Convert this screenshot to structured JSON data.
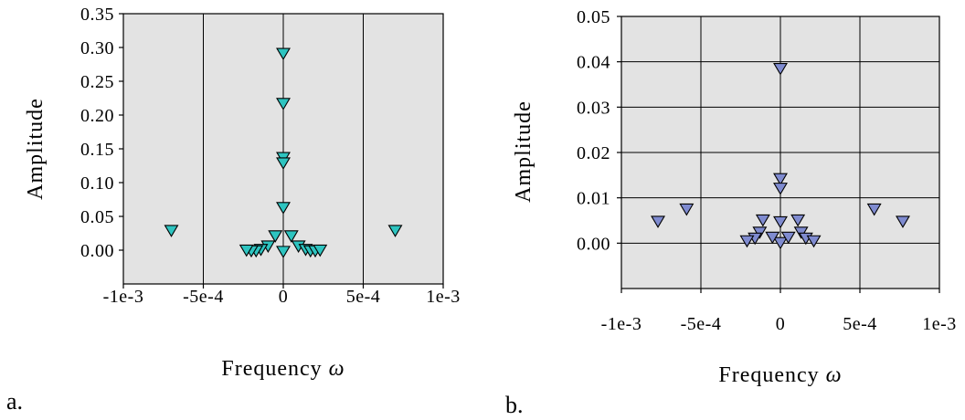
{
  "chart_data": [
    {
      "type": "scatter",
      "panel_label": "a.",
      "xlabel": "Frequency ω",
      "ylabel": "Amplitude",
      "xlim": [
        -0.001,
        0.001
      ],
      "ylim": [
        -0.05,
        0.35
      ],
      "x_ticks": [
        -0.001,
        -0.0005,
        0,
        0.0005,
        0.001
      ],
      "x_tick_labels": [
        "-1e-3",
        "-5e-4",
        "0",
        "5e-4",
        "1e-3"
      ],
      "y_ticks": [
        0,
        0.05,
        0.1,
        0.15,
        0.2,
        0.25,
        0.3,
        0.35
      ],
      "y_tick_labels": [
        "0.00",
        "0.05",
        "0.10",
        "0.15",
        "0.20",
        "0.25",
        "0.30",
        "0.35"
      ],
      "grid": "vertical",
      "marker": "triangle-down",
      "color": "#2ec4c0",
      "series": [
        {
          "points": [
            [
              0,
              0.291
            ],
            [
              0,
              0.217
            ],
            [
              0,
              0.137
            ],
            [
              0,
              0.129
            ],
            [
              0,
              0.063
            ],
            [
              0,
              -0.002
            ],
            [
              -5e-05,
              0.021
            ],
            [
              5e-05,
              0.021
            ],
            [
              -9.5e-05,
              0.006
            ],
            [
              9.5e-05,
              0.006
            ],
            [
              -0.00014,
              0.001
            ],
            [
              0.00014,
              0.001
            ],
            [
              -0.00017,
              -0.001
            ],
            [
              0.00017,
              -0.001
            ],
            [
              -0.0002,
              -0.001
            ],
            [
              0.0002,
              -0.001
            ],
            [
              -0.00023,
              0.0
            ],
            [
              0.00023,
              0.0
            ],
            [
              -0.0007,
              0.029
            ],
            [
              0.0007,
              0.029
            ]
          ]
        }
      ]
    },
    {
      "type": "scatter",
      "panel_label": "b.",
      "xlabel": "Frequency ω",
      "ylabel": "Amplitude",
      "xlim": [
        -0.001,
        0.001
      ],
      "ylim": [
        -0.01,
        0.05
      ],
      "x_ticks": [
        -0.001,
        -0.0005,
        0,
        0.0005,
        0.001
      ],
      "x_tick_labels": [
        "-1e-3",
        "-5e-4",
        "0",
        "5e-4",
        "1e-3"
      ],
      "y_ticks": [
        0,
        0.01,
        0.02,
        0.03,
        0.04,
        0.05
      ],
      "y_tick_labels": [
        "0.00",
        "0.01",
        "0.02",
        "0.03",
        "0.04",
        "0.05"
      ],
      "grid": "both",
      "marker": "triangle-down",
      "color": "#7f8bd0",
      "series": [
        {
          "points": [
            [
              0,
              0.0385
            ],
            [
              0,
              0.0142
            ],
            [
              0,
              0.0121
            ],
            [
              0,
              0.0047
            ],
            [
              0,
              0.0001
            ],
            [
              -0.00011,
              0.0051
            ],
            [
              0.00011,
              0.0051
            ],
            [
              -0.00013,
              0.0024
            ],
            [
              0.00013,
              0.0024
            ],
            [
              -5e-05,
              0.0013
            ],
            [
              5e-05,
              0.0013
            ],
            [
              -0.00016,
              0.0011
            ],
            [
              0.00016,
              0.0011
            ],
            [
              -0.00021,
              0.0005
            ],
            [
              0.00021,
              0.0005
            ],
            [
              -0.00059,
              0.0075
            ],
            [
              0.00059,
              0.0075
            ],
            [
              -0.00077,
              0.0048
            ],
            [
              0.00077,
              0.0048
            ]
          ]
        }
      ]
    }
  ]
}
